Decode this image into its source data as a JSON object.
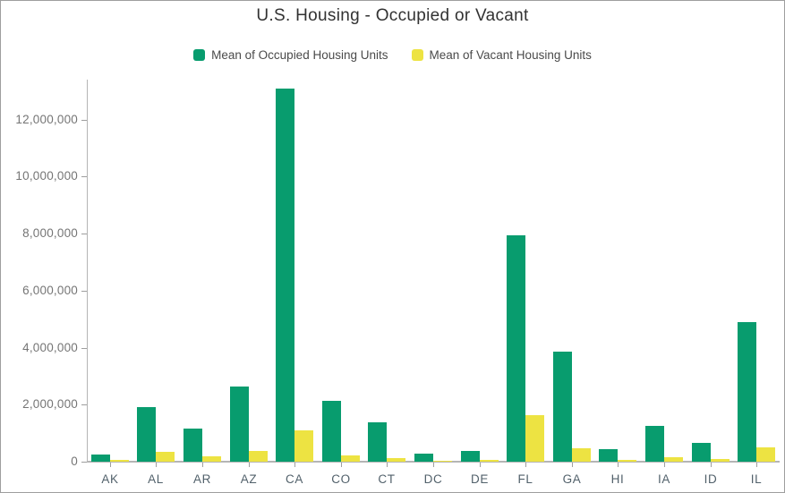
{
  "title": "U.S. Housing - Occupied or Vacant",
  "legend": [
    {
      "label": "Mean of Occupied Housing Units",
      "color": "#089c6e"
    },
    {
      "label": "Mean of Vacant Housing Units",
      "color": "#ede342"
    }
  ],
  "chart_data": {
    "type": "bar",
    "title": "U.S. Housing - Occupied or Vacant",
    "categories": [
      "AK",
      "AL",
      "AR",
      "AZ",
      "CA",
      "CO",
      "CT",
      "DC",
      "DE",
      "FL",
      "GA",
      "HI",
      "IA",
      "ID",
      "IL"
    ],
    "series": [
      {
        "name": "Mean of Occupied Housing Units",
        "color": "#089c6e",
        "values": [
          250000,
          1900000,
          1170000,
          2650000,
          13100000,
          2120000,
          1390000,
          290000,
          370000,
          7950000,
          3850000,
          450000,
          1270000,
          650000,
          4890000
        ]
      },
      {
        "name": "Mean of Vacant Housing Units",
        "color": "#ede342",
        "values": [
          70000,
          350000,
          185000,
          380000,
          1110000,
          220000,
          140000,
          30000,
          75000,
          1620000,
          470000,
          70000,
          150000,
          85000,
          490000
        ]
      }
    ],
    "xlabel": "",
    "ylabel": "",
    "ylim": [
      0,
      13400000
    ],
    "yticks": [
      0,
      2000000,
      4000000,
      6000000,
      8000000,
      10000000,
      12000000
    ],
    "ytick_labels": [
      "0",
      "2,000,000",
      "4,000,000",
      "6,000,000",
      "8,000,000",
      "10,000,000",
      "12,000,000"
    ],
    "grid": false,
    "legend_position": "top"
  }
}
